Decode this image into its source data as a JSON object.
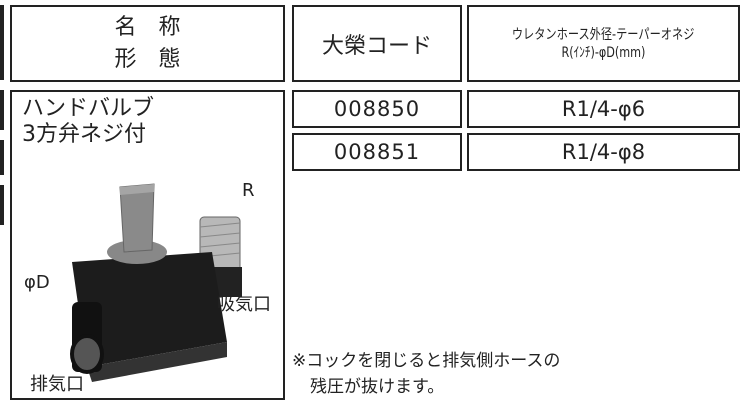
{
  "header": {
    "name_line1": "名　称",
    "name_line2": "形　態",
    "code": "大榮コード",
    "spec_line1": "ウレタンホース外径-テーパーオネジ",
    "spec_line2": "R(ｲﾝﾁ)-φD(mm)"
  },
  "product": {
    "title_line1": "ハンドバルブ",
    "title_line2": "3方弁ネジ付",
    "label_r": "R",
    "label_d": "φD",
    "label_intake": "吸気口",
    "label_exhaust": "排気口"
  },
  "table": {
    "rows": [
      [
        "008850",
        "R1/4-φ6"
      ],
      [
        "008851",
        "R1/4-φ8"
      ]
    ]
  },
  "note": {
    "line1": "※コックを閉じると排気側ホースの",
    "line2": "残圧が抜けます。"
  }
}
